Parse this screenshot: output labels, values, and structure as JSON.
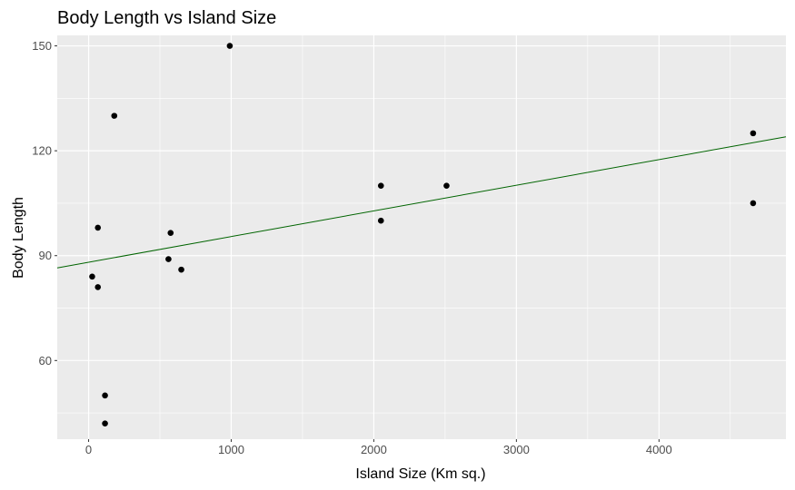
{
  "chart_data": {
    "type": "scatter",
    "title": "Body Length vs Island Size",
    "xlabel": "Island Size  (Km sq.)",
    "ylabel": "Body Length",
    "xlim": [
      -220,
      4890
    ],
    "ylim": [
      37.5,
      153
    ],
    "x_ticks": [
      0,
      1000,
      2000,
      3000,
      4000
    ],
    "x_tick_labels": [
      "0",
      "1000",
      "2000",
      "3000",
      "4000"
    ],
    "y_ticks": [
      60,
      90,
      120,
      150
    ],
    "y_tick_labels": [
      "60",
      "90",
      "120",
      "150"
    ],
    "grid": true,
    "background": "#ebebeb",
    "grid_color": "#ffffff",
    "point_color": "#000000",
    "trendline_color": "#006400",
    "points": [
      {
        "x": 990,
        "y": 150
      },
      {
        "x": 180,
        "y": 130
      },
      {
        "x": 4660,
        "y": 125
      },
      {
        "x": 2050,
        "y": 110
      },
      {
        "x": 2510,
        "y": 110
      },
      {
        "x": 4660,
        "y": 105
      },
      {
        "x": 2050,
        "y": 100
      },
      {
        "x": 65,
        "y": 98
      },
      {
        "x": 575,
        "y": 96.5
      },
      {
        "x": 560,
        "y": 89
      },
      {
        "x": 650,
        "y": 86
      },
      {
        "x": 25,
        "y": 84
      },
      {
        "x": 65,
        "y": 81
      },
      {
        "x": 115,
        "y": 50
      },
      {
        "x": 115,
        "y": 42
      }
    ],
    "trendline": {
      "x": [
        -220,
        4890
      ],
      "y": [
        86.5,
        124
      ]
    }
  }
}
